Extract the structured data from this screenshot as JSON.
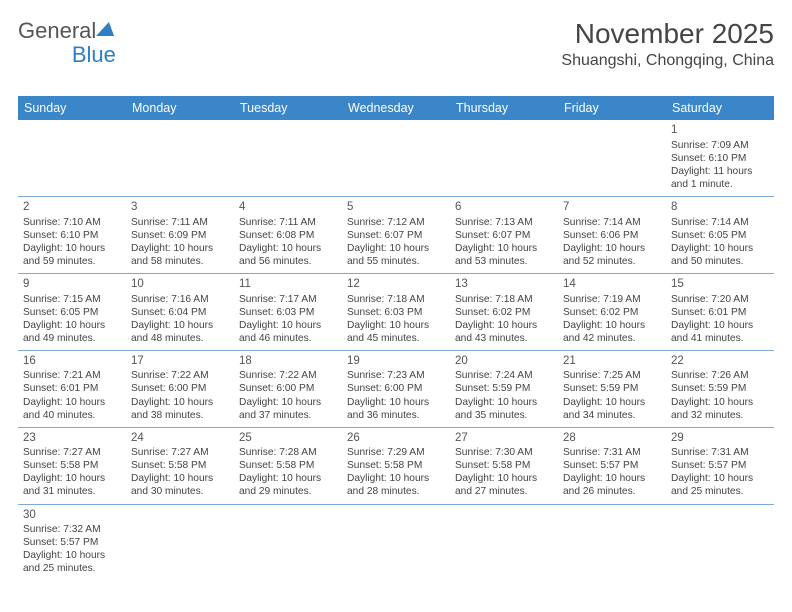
{
  "header": {
    "logo_general": "General",
    "logo_blue": "Blue",
    "month_title": "November 2025",
    "location": "Shuangshi, Chongqing, China"
  },
  "calendar": {
    "day_headers": [
      "Sunday",
      "Monday",
      "Tuesday",
      "Wednesday",
      "Thursday",
      "Friday",
      "Saturday"
    ],
    "header_bg": "#3a86c8",
    "header_fg": "#ffffff",
    "rule_color": "#7da9d4",
    "weeks": [
      [
        null,
        null,
        null,
        null,
        null,
        null,
        {
          "n": "1",
          "sunrise": "Sunrise: 7:09 AM",
          "sunset": "Sunset: 6:10 PM",
          "daylight": "Daylight: 11 hours and 1 minute."
        }
      ],
      [
        {
          "n": "2",
          "sunrise": "Sunrise: 7:10 AM",
          "sunset": "Sunset: 6:10 PM",
          "daylight": "Daylight: 10 hours and 59 minutes."
        },
        {
          "n": "3",
          "sunrise": "Sunrise: 7:11 AM",
          "sunset": "Sunset: 6:09 PM",
          "daylight": "Daylight: 10 hours and 58 minutes."
        },
        {
          "n": "4",
          "sunrise": "Sunrise: 7:11 AM",
          "sunset": "Sunset: 6:08 PM",
          "daylight": "Daylight: 10 hours and 56 minutes."
        },
        {
          "n": "5",
          "sunrise": "Sunrise: 7:12 AM",
          "sunset": "Sunset: 6:07 PM",
          "daylight": "Daylight: 10 hours and 55 minutes."
        },
        {
          "n": "6",
          "sunrise": "Sunrise: 7:13 AM",
          "sunset": "Sunset: 6:07 PM",
          "daylight": "Daylight: 10 hours and 53 minutes."
        },
        {
          "n": "7",
          "sunrise": "Sunrise: 7:14 AM",
          "sunset": "Sunset: 6:06 PM",
          "daylight": "Daylight: 10 hours and 52 minutes."
        },
        {
          "n": "8",
          "sunrise": "Sunrise: 7:14 AM",
          "sunset": "Sunset: 6:05 PM",
          "daylight": "Daylight: 10 hours and 50 minutes."
        }
      ],
      [
        {
          "n": "9",
          "sunrise": "Sunrise: 7:15 AM",
          "sunset": "Sunset: 6:05 PM",
          "daylight": "Daylight: 10 hours and 49 minutes."
        },
        {
          "n": "10",
          "sunrise": "Sunrise: 7:16 AM",
          "sunset": "Sunset: 6:04 PM",
          "daylight": "Daylight: 10 hours and 48 minutes."
        },
        {
          "n": "11",
          "sunrise": "Sunrise: 7:17 AM",
          "sunset": "Sunset: 6:03 PM",
          "daylight": "Daylight: 10 hours and 46 minutes."
        },
        {
          "n": "12",
          "sunrise": "Sunrise: 7:18 AM",
          "sunset": "Sunset: 6:03 PM",
          "daylight": "Daylight: 10 hours and 45 minutes."
        },
        {
          "n": "13",
          "sunrise": "Sunrise: 7:18 AM",
          "sunset": "Sunset: 6:02 PM",
          "daylight": "Daylight: 10 hours and 43 minutes."
        },
        {
          "n": "14",
          "sunrise": "Sunrise: 7:19 AM",
          "sunset": "Sunset: 6:02 PM",
          "daylight": "Daylight: 10 hours and 42 minutes."
        },
        {
          "n": "15",
          "sunrise": "Sunrise: 7:20 AM",
          "sunset": "Sunset: 6:01 PM",
          "daylight": "Daylight: 10 hours and 41 minutes."
        }
      ],
      [
        {
          "n": "16",
          "sunrise": "Sunrise: 7:21 AM",
          "sunset": "Sunset: 6:01 PM",
          "daylight": "Daylight: 10 hours and 40 minutes."
        },
        {
          "n": "17",
          "sunrise": "Sunrise: 7:22 AM",
          "sunset": "Sunset: 6:00 PM",
          "daylight": "Daylight: 10 hours and 38 minutes."
        },
        {
          "n": "18",
          "sunrise": "Sunrise: 7:22 AM",
          "sunset": "Sunset: 6:00 PM",
          "daylight": "Daylight: 10 hours and 37 minutes."
        },
        {
          "n": "19",
          "sunrise": "Sunrise: 7:23 AM",
          "sunset": "Sunset: 6:00 PM",
          "daylight": "Daylight: 10 hours and 36 minutes."
        },
        {
          "n": "20",
          "sunrise": "Sunrise: 7:24 AM",
          "sunset": "Sunset: 5:59 PM",
          "daylight": "Daylight: 10 hours and 35 minutes."
        },
        {
          "n": "21",
          "sunrise": "Sunrise: 7:25 AM",
          "sunset": "Sunset: 5:59 PM",
          "daylight": "Daylight: 10 hours and 34 minutes."
        },
        {
          "n": "22",
          "sunrise": "Sunrise: 7:26 AM",
          "sunset": "Sunset: 5:59 PM",
          "daylight": "Daylight: 10 hours and 32 minutes."
        }
      ],
      [
        {
          "n": "23",
          "sunrise": "Sunrise: 7:27 AM",
          "sunset": "Sunset: 5:58 PM",
          "daylight": "Daylight: 10 hours and 31 minutes."
        },
        {
          "n": "24",
          "sunrise": "Sunrise: 7:27 AM",
          "sunset": "Sunset: 5:58 PM",
          "daylight": "Daylight: 10 hours and 30 minutes."
        },
        {
          "n": "25",
          "sunrise": "Sunrise: 7:28 AM",
          "sunset": "Sunset: 5:58 PM",
          "daylight": "Daylight: 10 hours and 29 minutes."
        },
        {
          "n": "26",
          "sunrise": "Sunrise: 7:29 AM",
          "sunset": "Sunset: 5:58 PM",
          "daylight": "Daylight: 10 hours and 28 minutes."
        },
        {
          "n": "27",
          "sunrise": "Sunrise: 7:30 AM",
          "sunset": "Sunset: 5:58 PM",
          "daylight": "Daylight: 10 hours and 27 minutes."
        },
        {
          "n": "28",
          "sunrise": "Sunrise: 7:31 AM",
          "sunset": "Sunset: 5:57 PM",
          "daylight": "Daylight: 10 hours and 26 minutes."
        },
        {
          "n": "29",
          "sunrise": "Sunrise: 7:31 AM",
          "sunset": "Sunset: 5:57 PM",
          "daylight": "Daylight: 10 hours and 25 minutes."
        }
      ],
      [
        {
          "n": "30",
          "sunrise": "Sunrise: 7:32 AM",
          "sunset": "Sunset: 5:57 PM",
          "daylight": "Daylight: 10 hours and 25 minutes."
        },
        null,
        null,
        null,
        null,
        null,
        null
      ]
    ]
  }
}
